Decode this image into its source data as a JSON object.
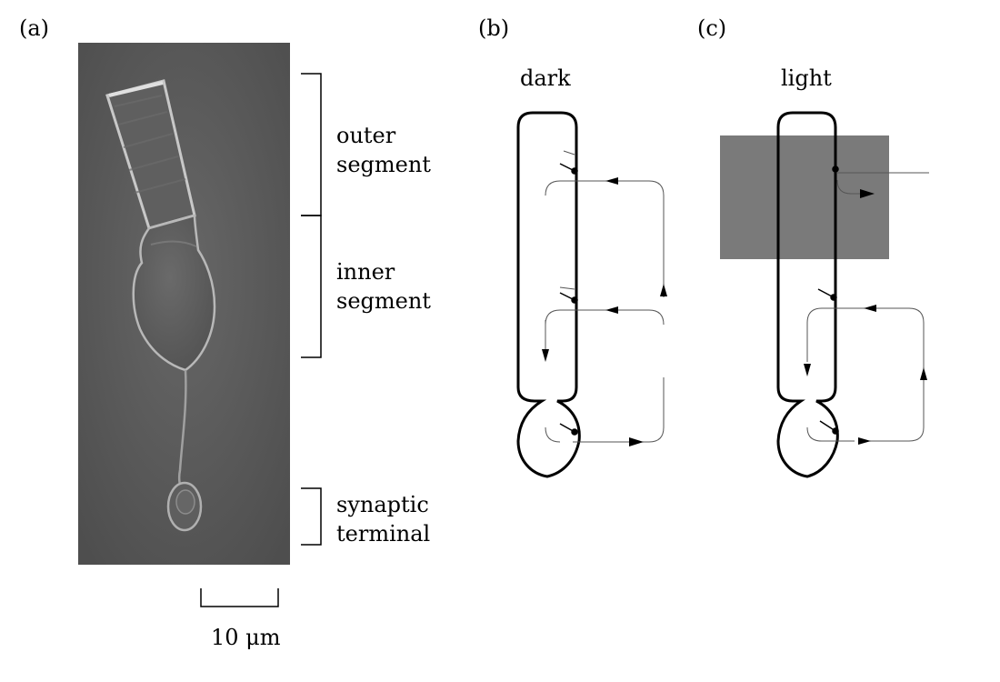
{
  "panels": {
    "a": {
      "letter": "(a)"
    },
    "b": {
      "letter": "(b)",
      "condition": "dark"
    },
    "c": {
      "letter": "(c)",
      "condition": "light"
    }
  },
  "regions": {
    "outer_segment": {
      "line1": "outer",
      "line2": "segment"
    },
    "inner_segment": {
      "line1": "inner",
      "line2": "segment"
    },
    "synaptic_terminal": {
      "line1": "synaptic",
      "line2": "terminal"
    }
  },
  "scale_bar": {
    "label": "10 μm"
  },
  "colors": {
    "micrograph_bg": "#5a5a5a",
    "light_stimulus": "#7a7a7a",
    "membrane": "#000000",
    "current_path": "#555555"
  }
}
